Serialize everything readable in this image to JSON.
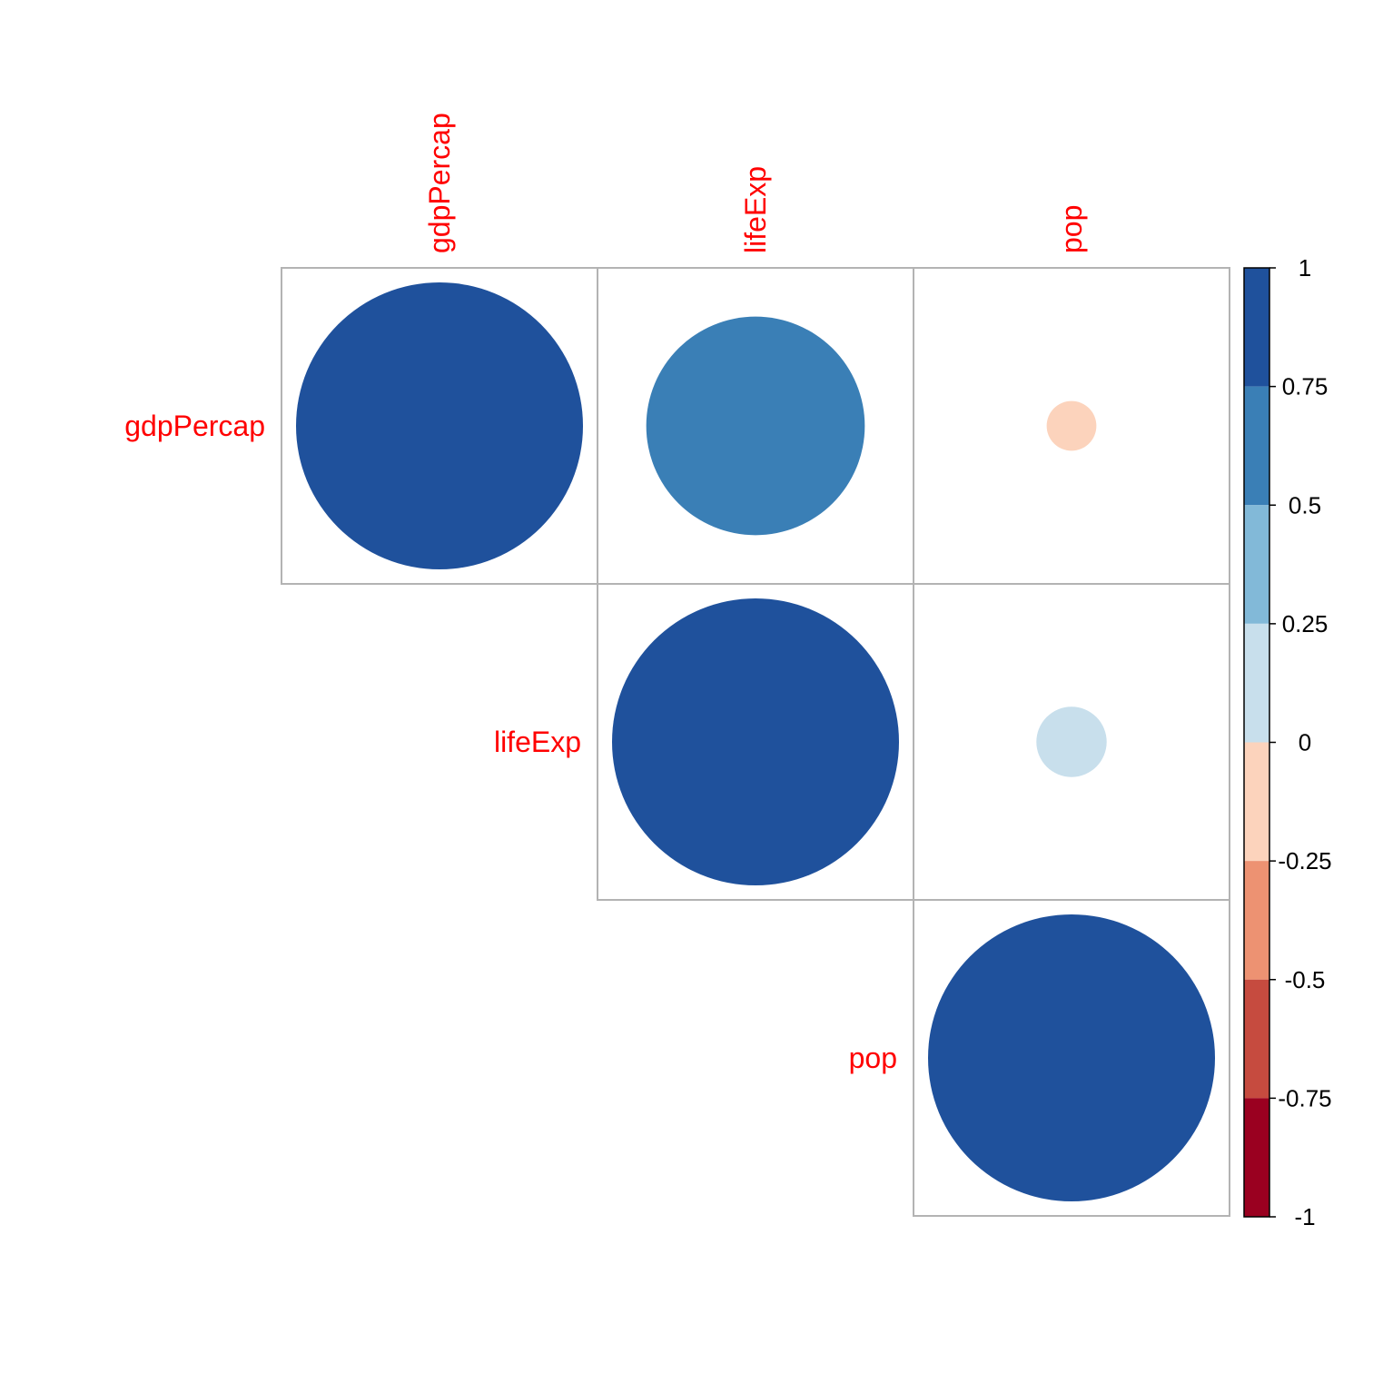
{
  "chart_data": {
    "type": "heatmap",
    "style": "circle correlation matrix (upper triangle)",
    "variables": [
      "gdpPercap",
      "lifeExp",
      "pop"
    ],
    "matrix": [
      [
        1.0,
        0.58,
        -0.03
      ],
      [
        0.58,
        1.0,
        0.06
      ],
      [
        -0.03,
        0.06,
        1.0
      ]
    ],
    "triangle": "upper",
    "label_color": "#ff0000",
    "colorbar": {
      "range": [
        -1,
        1
      ],
      "position": "right",
      "ticks": [
        "1",
        "0.75",
        "0.5",
        "0.25",
        "0",
        "-0.25",
        "-0.5",
        "-0.75",
        "-1"
      ],
      "tick_values": [
        1,
        0.75,
        0.5,
        0.25,
        0,
        -0.25,
        -0.5,
        -0.75,
        -1
      ],
      "bins": [
        {
          "from": 0.75,
          "to": 1,
          "color": "#1f519c"
        },
        {
          "from": 0.5,
          "to": 0.75,
          "color": "#3a7fb6"
        },
        {
          "from": 0.25,
          "to": 0.5,
          "color": "#82b9d8"
        },
        {
          "from": 0,
          "to": 0.25,
          "color": "#c8dfec"
        },
        {
          "from": -0.25,
          "to": 0,
          "color": "#fcd3bc"
        },
        {
          "from": -0.5,
          "to": -0.25,
          "color": "#ed9272"
        },
        {
          "from": -0.75,
          "to": -0.5,
          "color": "#c64b3f"
        },
        {
          "from": -1,
          "to": -0.75,
          "color": "#9a0020"
        }
      ]
    }
  }
}
